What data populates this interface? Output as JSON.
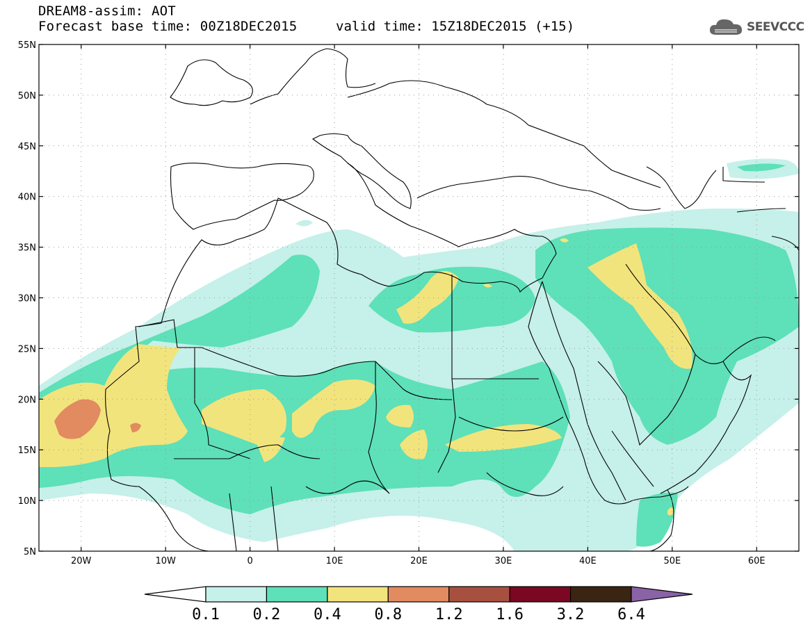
{
  "header": {
    "title": "DREAM8-assim: AOT",
    "base_time": "Forecast base time: 00Z18DEC2015",
    "valid_time": "valid time: 15Z18DEC2015 (+15)"
  },
  "logo": {
    "text": "SEEVCCC",
    "icon": "cloud-icon"
  },
  "map": {
    "lon_range": [
      -25,
      65
    ],
    "lat_range": [
      5,
      55
    ],
    "lat_labels": [
      "55N",
      "50N",
      "45N",
      "40N",
      "35N",
      "30N",
      "25N",
      "20N",
      "15N",
      "10N",
      "5N"
    ],
    "lon_labels": [
      "20W",
      "10W",
      "0",
      "10E",
      "20E",
      "30E",
      "40E",
      "50E",
      "60E"
    ]
  },
  "colorbar": {
    "labels": [
      "0.1",
      "0.2",
      "0.4",
      "0.8",
      "1.2",
      "1.6",
      "3.2",
      "6.4"
    ],
    "colors": [
      "#ffffff",
      "#c6f0ea",
      "#5ee0b8",
      "#f2e47c",
      "#e28a60",
      "#a8503f",
      "#7a0822",
      "#3a2412",
      "#8a62a6"
    ]
  }
}
